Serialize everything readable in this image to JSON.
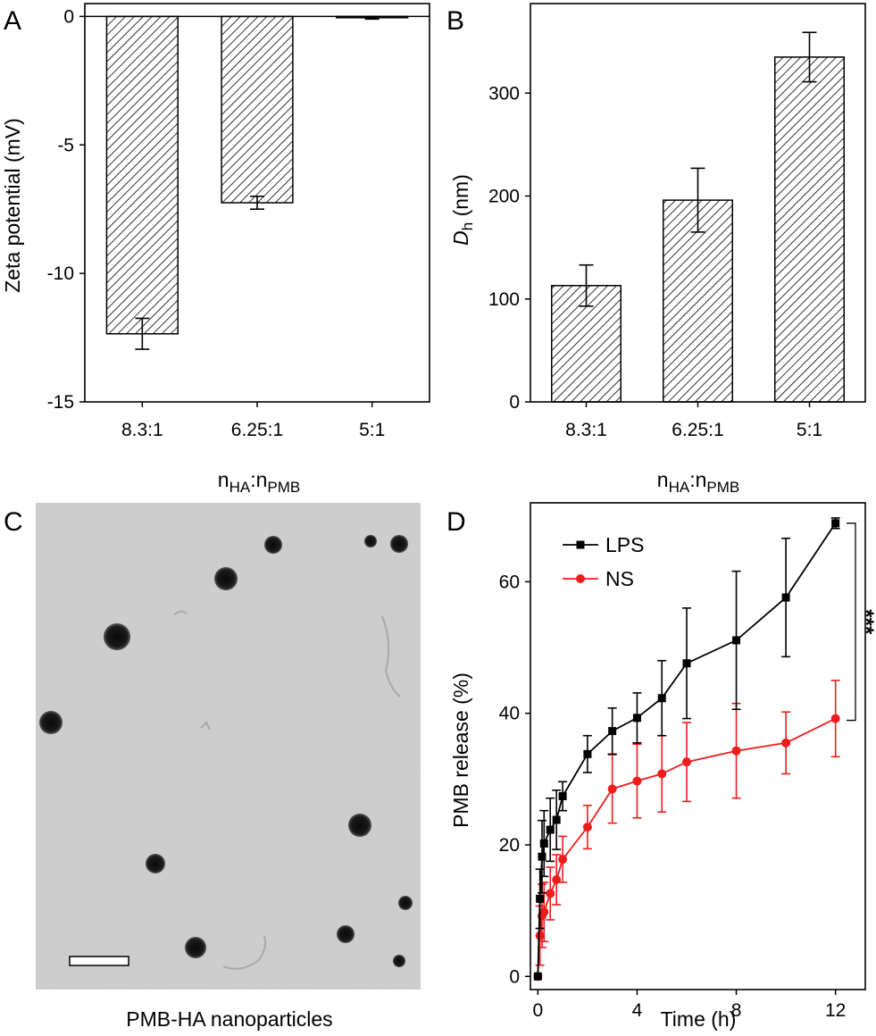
{
  "chart_data": [
    {
      "panel": "A",
      "type": "bar",
      "categories": [
        "8.3:1",
        "6.25:1",
        "5:1"
      ],
      "values": [
        -12.35,
        -7.25,
        -0.05
      ],
      "errors": [
        0.6,
        0.25,
        0.05
      ],
      "ylabel": "Zeta potential (mV)",
      "xlabel": {
        "main": "n",
        "sub1": "HA",
        "sep": ":n",
        "sub2": "PMB"
      },
      "ylim": [
        -15,
        0.5
      ],
      "yticks": [
        0,
        -5,
        -10,
        -15
      ],
      "ytick_labels": [
        "0",
        "-5",
        "-10",
        "-15"
      ],
      "fill": "hatched"
    },
    {
      "panel": "B",
      "type": "bar",
      "categories": [
        "8.3:1",
        "6.25:1",
        "5:1"
      ],
      "values": [
        113,
        196,
        335
      ],
      "errors": [
        20,
        31,
        24
      ],
      "ylabel": {
        "main": "D",
        "sub": "h",
        "rest": " (nm)"
      },
      "xlabel": {
        "main": "n",
        "sub1": "HA",
        "sep": ":n",
        "sub2": "PMB"
      },
      "ylim": [
        0,
        387
      ],
      "yticks": [
        0,
        100,
        200,
        300
      ],
      "ytick_labels": [
        "0",
        "100",
        "200",
        "300"
      ],
      "fill": "hatched"
    },
    {
      "panel": "D",
      "type": "line",
      "xlabel": "Time (h)",
      "ylabel": "PMB release (%)",
      "xlim": [
        -0.3,
        13.2
      ],
      "ylim": [
        -2,
        72
      ],
      "xticks": [
        0,
        4,
        8,
        12
      ],
      "xtick_labels": [
        "0",
        "4",
        "8",
        "12"
      ],
      "yticks": [
        0,
        20,
        40,
        60
      ],
      "ytick_labels": [
        "0",
        "20",
        "40",
        "60"
      ],
      "significance": "***",
      "series": [
        {
          "name": "LPS",
          "color": "#000000",
          "marker": "square",
          "x": [
            0,
            0.083,
            0.167,
            0.25,
            0.5,
            0.75,
            1,
            2,
            3,
            4,
            5,
            6,
            8,
            10,
            12
          ],
          "y": [
            0,
            11.8,
            18.2,
            20.2,
            22.3,
            23.8,
            27.4,
            33.8,
            37.3,
            39.3,
            42.3,
            47.6,
            51.1,
            57.6,
            68.9
          ],
          "err": [
            0,
            4.5,
            5.5,
            5,
            4.8,
            4.5,
            2.2,
            2.8,
            3.5,
            3.8,
            5.7,
            8.4,
            10.5,
            9,
            0.8
          ]
        },
        {
          "name": "NS",
          "color": "#ee1c1c",
          "marker": "circle",
          "x": [
            0,
            0.083,
            0.167,
            0.25,
            0.5,
            0.75,
            1,
            2,
            3,
            4,
            5,
            6,
            8,
            10,
            12
          ],
          "y": [
            0,
            6.2,
            9.2,
            9.8,
            12.6,
            14.7,
            17.8,
            22.7,
            28.5,
            29.7,
            30.8,
            32.6,
            34.3,
            35.5,
            39.2
          ],
          "err": [
            0,
            4.5,
            4.8,
            4.5,
            4,
            3.8,
            3.5,
            3.3,
            5.2,
            5.6,
            5.8,
            6,
            7.2,
            4.7,
            5.8
          ]
        }
      ]
    }
  ],
  "panels": {
    "A": {
      "letter": "A"
    },
    "B": {
      "letter": "B"
    },
    "C": {
      "letter": "C",
      "caption": "PMB-HA nanoparticles"
    },
    "D": {
      "letter": "D"
    }
  },
  "colors": {
    "lps": "#000000",
    "ns": "#ee1c1c",
    "tem_background": "#cfcfcf",
    "particle": "#141414"
  }
}
